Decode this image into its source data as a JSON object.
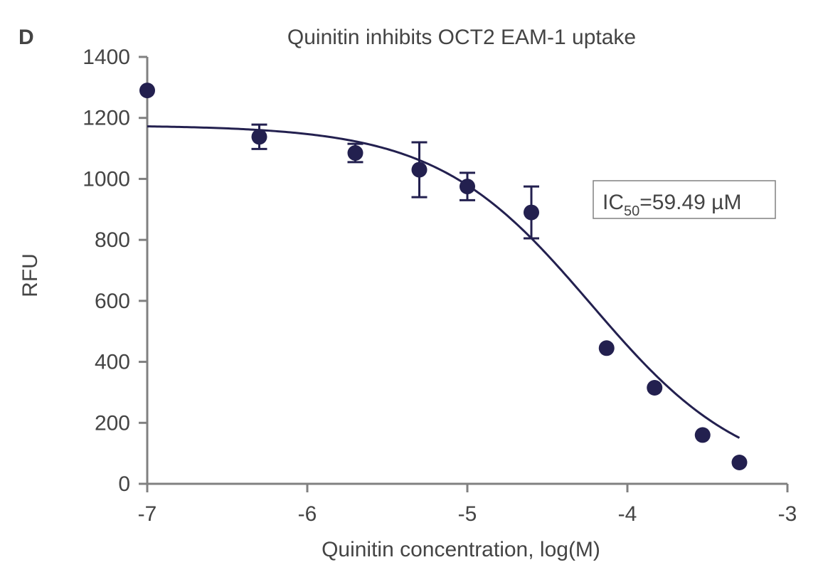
{
  "panel_label": "D",
  "colors": {
    "series": "#23204f",
    "axis": "#808080",
    "text": "#444444",
    "box_border": "#808080"
  },
  "chart_data": {
    "type": "scatter",
    "title": "Quinitin inhibits OCT2 EAM-1 uptake",
    "xlabel": "Quinitin concentration, log(M)",
    "ylabel": "RFU",
    "xlim": [
      -7,
      -3
    ],
    "ylim": [
      0,
      1400
    ],
    "xticks": [
      -7,
      -6,
      -5,
      -4,
      -3
    ],
    "xtick_labels": [
      "-7",
      "-6",
      "-5",
      "-4",
      "-3"
    ],
    "yticks": [
      0,
      200,
      400,
      600,
      800,
      1000,
      1200,
      1400
    ],
    "ytick_labels": [
      "0",
      "200",
      "400",
      "600",
      "800",
      "1000",
      "1200",
      "1400"
    ],
    "grid": false,
    "points": [
      {
        "x": -7.0,
        "y": 1290,
        "err": null
      },
      {
        "x": -6.3,
        "y": 1138,
        "err": 40
      },
      {
        "x": -5.7,
        "y": 1085,
        "err": 30
      },
      {
        "x": -5.3,
        "y": 1030,
        "err": 90
      },
      {
        "x": -5.0,
        "y": 975,
        "err": 45
      },
      {
        "x": -4.6,
        "y": 890,
        "err": 85
      },
      {
        "x": -4.13,
        "y": 445,
        "err": null
      },
      {
        "x": -3.83,
        "y": 315,
        "err": null
      },
      {
        "x": -3.53,
        "y": 160,
        "err": null
      },
      {
        "x": -3.3,
        "y": 70,
        "err": null
      }
    ],
    "fit": {
      "model": "four-parameter logistic",
      "bottom": 0,
      "top": 1176,
      "log_ic50": -4.2256,
      "hill_slope": 0.9,
      "x_range": [
        -7,
        -3.3
      ]
    },
    "annotation": {
      "label_main": "IC",
      "label_sub": "50",
      "label_value": "=59.49 µM"
    }
  }
}
